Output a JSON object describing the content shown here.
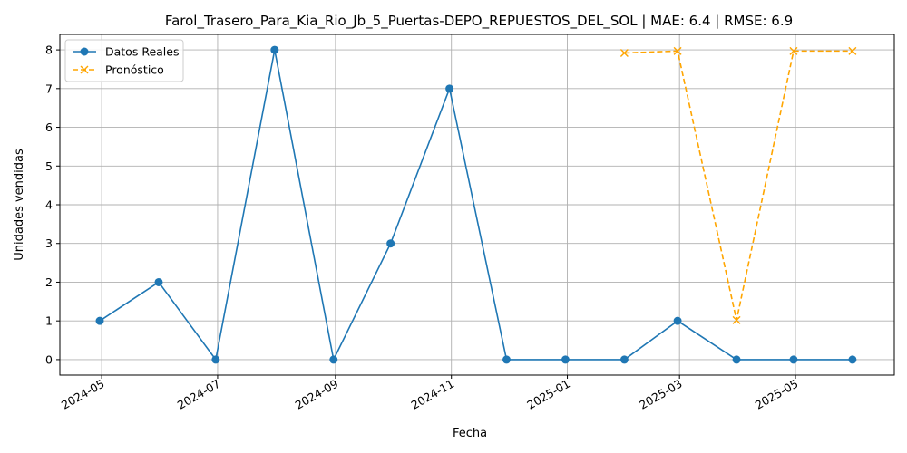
{
  "chart_data": {
    "type": "line",
    "title": "Farol_Trasero_Para_Kia_Rio_Jb_5_Puertas-DEPO_REPUESTOS_DEL_SOL | MAE: 6.4 | RMSE: 6.9",
    "xlabel": "Fecha",
    "ylabel": "Unidades vendidas",
    "ylim": [
      -0.4,
      8.4
    ],
    "xlim": [
      "2024-04-09",
      "2025-06-22"
    ],
    "grid": true,
    "legend_position": "top-left",
    "x_ticks": [
      "2024-05",
      "2024-07",
      "2024-09",
      "2024-11",
      "2025-01",
      "2025-03",
      "2025-05"
    ],
    "y_ticks": [
      0,
      1,
      2,
      3,
      4,
      5,
      6,
      7,
      8
    ],
    "series": [
      {
        "name": "Datos Reales",
        "color": "#1f77b4",
        "marker": "circle",
        "line_style": "solid",
        "x": [
          "2024-04-30",
          "2024-05-31",
          "2024-06-30",
          "2024-07-31",
          "2024-08-31",
          "2024-09-30",
          "2024-10-31",
          "2024-11-30",
          "2024-12-31",
          "2025-01-31",
          "2025-02-28",
          "2025-03-31",
          "2025-04-30",
          "2025-05-31"
        ],
        "values": [
          1,
          2,
          0,
          8,
          0,
          3,
          7,
          0,
          0,
          0,
          1,
          0,
          0,
          0
        ]
      },
      {
        "name": "Pronóstico",
        "color": "#ffa500",
        "marker": "x",
        "line_style": "dashed",
        "x": [
          "2025-01-31",
          "2025-02-28",
          "2025-03-31",
          "2025-04-30",
          "2025-05-31"
        ],
        "values": [
          7.92,
          7.97,
          1.02,
          7.97,
          7.97
        ]
      }
    ]
  }
}
